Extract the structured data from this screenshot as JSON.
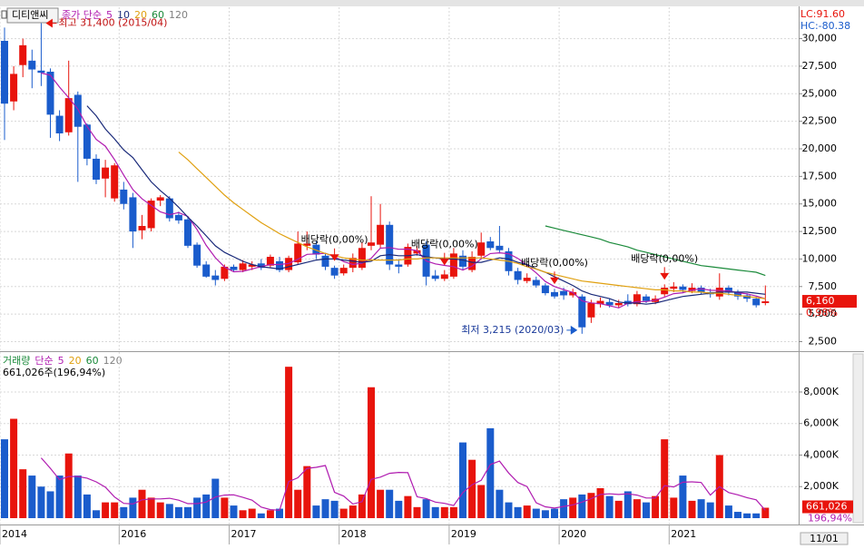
{
  "chart_data": {
    "type": "candlestick",
    "title": "디티앤씨",
    "price_legend": {
      "label": "종가 단순",
      "periods": [
        {
          "name": "5",
          "color": "#b01cb0"
        },
        {
          "name": "10",
          "color": "#1a2a7a"
        },
        {
          "name": "20",
          "color": "#e0a010"
        },
        {
          "name": "60",
          "color": "#1a8a3a"
        },
        {
          "name": "120",
          "color": "#808080"
        }
      ]
    },
    "lc_label": "LC:91.60",
    "hc_label": "HC:-80.38",
    "up_color": "#e8140c",
    "down_color": "#1a5ccc",
    "x_labels": [
      {
        "label": "2014",
        "at": 0
      },
      {
        "label": "2016",
        "at": 13
      },
      {
        "label": "2017",
        "at": 25
      },
      {
        "label": "2018",
        "at": 37
      },
      {
        "label": "2019",
        "at": 49
      },
      {
        "label": "2020",
        "at": 61
      },
      {
        "label": "2021",
        "at": 73
      }
    ],
    "last_date_label": "11/01",
    "ylim": [
      1800,
      32600
    ],
    "yticks": [
      {
        "value": 2500,
        "label": "2,500"
      },
      {
        "value": 5000,
        "label": "5,000"
      },
      {
        "value": 7500,
        "label": "7,500"
      },
      {
        "value": 10000,
        "label": "10,000"
      },
      {
        "value": 12500,
        "label": "12,500"
      },
      {
        "value": 15000,
        "label": "15,000"
      },
      {
        "value": 17500,
        "label": "17,500"
      },
      {
        "value": 20000,
        "label": "20,000"
      },
      {
        "value": 22500,
        "label": "22,500"
      },
      {
        "value": 25000,
        "label": "25,000"
      },
      {
        "value": 27500,
        "label": "27,500"
      },
      {
        "value": 30000,
        "label": "30,000"
      }
    ],
    "open": [
      29800,
      24300,
      27600,
      28000,
      27100,
      27000,
      23000,
      21500,
      24900,
      22200,
      19100,
      17300,
      15500,
      16300,
      15600,
      12600,
      12800,
      15300,
      15500,
      14000,
      13600,
      11300,
      9500,
      8500,
      8200,
      9300,
      9000,
      9300,
      9600,
      9400,
      9800,
      9000,
      9700,
      11200,
      11300,
      10300,
      9200,
      8700,
      9200,
      9200,
      11200,
      11300,
      13100,
      9500,
      9500,
      10500,
      11300,
      8500,
      8200,
      8400,
      10300,
      9000,
      10300,
      11600,
      11200,
      10700,
      8900,
      8000,
      8100,
      7600,
      7000,
      7100,
      6700,
      6600,
      4700,
      5900,
      6100,
      5800,
      6200,
      5900,
      6600,
      6100,
      6800,
      7300,
      7500,
      7100,
      7400,
      7000,
      6600,
      7400,
      7000,
      6700,
      6400,
      6000
    ],
    "high": [
      31000,
      27500,
      30000,
      29000,
      31400,
      27300,
      23500,
      28000,
      25200,
      22300,
      19500,
      19000,
      18700,
      17000,
      16000,
      14000,
      15500,
      15800,
      15700,
      14300,
      13800,
      11500,
      9800,
      9000,
      9500,
      9500,
      9900,
      9800,
      10000,
      10400,
      10200,
      10300,
      12500,
      12500,
      11600,
      10500,
      9400,
      9500,
      10500,
      11500,
      15700,
      15000,
      13400,
      10000,
      11400,
      11200,
      11600,
      9000,
      9000,
      11000,
      10800,
      10700,
      12400,
      12000,
      13000,
      11000,
      9200,
      8700,
      8400,
      7800,
      7300,
      7400,
      7300,
      6800,
      6300,
      6500,
      6400,
      6300,
      6800,
      7100,
      6800,
      6700,
      7700,
      7900,
      7700,
      7800,
      7600,
      7300,
      8700,
      7600,
      7200,
      6900,
      6600,
      7600
    ],
    "low": [
      20800,
      23500,
      26500,
      25500,
      25700,
      21000,
      20700,
      21200,
      17000,
      18500,
      16800,
      15600,
      15200,
      14500,
      11000,
      11800,
      12500,
      14800,
      13400,
      13200,
      11000,
      9200,
      8300,
      7600,
      8000,
      8800,
      8800,
      9000,
      9000,
      9200,
      8800,
      8800,
      9500,
      10800,
      10000,
      9000,
      8200,
      8500,
      8800,
      9000,
      10800,
      11000,
      9000,
      8700,
      9300,
      10300,
      7600,
      8000,
      8000,
      8200,
      9000,
      8800,
      10000,
      10800,
      10500,
      8500,
      7700,
      7800,
      7400,
      6700,
      6400,
      6300,
      6500,
      3215,
      4200,
      5600,
      5600,
      5600,
      5700,
      5700,
      6000,
      5900,
      6600,
      7000,
      6900,
      6900,
      6800,
      6500,
      6300,
      6700,
      6300,
      6100,
      5600,
      5800
    ],
    "close": [
      24100,
      26800,
      29400,
      27200,
      26900,
      23100,
      21400,
      24600,
      22000,
      19100,
      17200,
      18300,
      18500,
      15000,
      12500,
      13000,
      15300,
      15600,
      13700,
      13500,
      11200,
      9400,
      8400,
      8100,
      9300,
      9000,
      9600,
      9500,
      9200,
      10200,
      9000,
      10100,
      11400,
      11400,
      10400,
      9300,
      8500,
      9200,
      10100,
      11000,
      11500,
      13100,
      9500,
      9300,
      11100,
      10800,
      8400,
      8200,
      8600,
      10500,
      9300,
      10200,
      11500,
      11000,
      10800,
      8900,
      8100,
      8300,
      7600,
      6900,
      6600,
      6700,
      7000,
      3800,
      6000,
      6200,
      5800,
      6000,
      5900,
      6800,
      6200,
      6400,
      7400,
      7500,
      7200,
      7400,
      7000,
      6800,
      7400,
      7000,
      6600,
      6400,
      5800,
      6160
    ],
    "ma_series": [
      {
        "name": "5",
        "color": "#b01cb0",
        "values": [
          null,
          null,
          null,
          null,
          26880,
          26680,
          25600,
          24640,
          23600,
          22040,
          20860,
          20240,
          19020,
          17620,
          16300,
          15460,
          14860,
          14280,
          14020,
          14220,
          13860,
          12680,
          11240,
          10120,
          9280,
          8840,
          8880,
          9100,
          9320,
          9500,
          9500,
          9600,
          9980,
          10420,
          10460,
          10520,
          10200,
          9760,
          9500,
          9620,
          10060,
          10980,
          11040,
          10880,
          10900,
          10760,
          9820,
          9560,
          9420,
          9300,
          9000,
          9360,
          10020,
          10500,
          10560,
          10480,
          10060,
          9420,
          8740,
          7960,
          7500,
          7220,
          6960,
          6200,
          6020,
          5940,
          5760,
          5560,
          5980,
          6140,
          6140,
          6260,
          6540,
          6860,
          6940,
          7180,
          7300,
          7160,
          7140,
          7100,
          6940,
          6840,
          6640,
          6392
        ]
      },
      {
        "name": "10",
        "color": "#1a2a7a",
        "values": [
          null,
          null,
          null,
          null,
          null,
          null,
          null,
          null,
          null,
          23900,
          23000,
          21800,
          20900,
          19900,
          19200,
          18100,
          17000,
          16200,
          15500,
          14700,
          13800,
          13000,
          12100,
          11200,
          10600,
          10200,
          9800,
          9500,
          9300,
          9200,
          9100,
          9300,
          9500,
          9700,
          9900,
          10000,
          10000,
          9900,
          9800,
          9700,
          9800,
          10300,
          10400,
          10300,
          10300,
          10400,
          10200,
          10100,
          10000,
          10000,
          9900,
          9700,
          9700,
          9900,
          10100,
          10000,
          9700,
          9500,
          9100,
          8800,
          8400,
          8000,
          7600,
          7100,
          6800,
          6600,
          6400,
          6100,
          6000,
          6000,
          5900,
          6000,
          6200,
          6400,
          6600,
          6700,
          6800,
          6900,
          7000,
          7000,
          7000,
          7000,
          6900,
          6800
        ]
      },
      {
        "name": "20",
        "color": "#e0a010",
        "values": [
          null,
          null,
          null,
          null,
          null,
          null,
          null,
          null,
          null,
          null,
          null,
          null,
          null,
          null,
          null,
          null,
          null,
          null,
          null,
          19700,
          19000,
          18200,
          17400,
          16600,
          15800,
          15100,
          14500,
          13900,
          13300,
          12800,
          12300,
          11900,
          11500,
          11100,
          10800,
          10500,
          10300,
          10100,
          10000,
          9900,
          9900,
          9900,
          9900,
          9900,
          10000,
          10000,
          10100,
          10100,
          10100,
          10100,
          10100,
          10100,
          10100,
          10000,
          9900,
          9800,
          9600,
          9300,
          9100,
          8800,
          8600,
          8400,
          8200,
          8000,
          7900,
          7800,
          7700,
          7600,
          7500,
          7400,
          7300,
          7200,
          7200,
          7100,
          7100,
          7000,
          7000,
          6900,
          6900,
          6800,
          6700,
          6600,
          6500,
          6400
        ]
      },
      {
        "name": "60",
        "color": "#1a8a3a",
        "values": [
          null,
          null,
          null,
          null,
          null,
          null,
          null,
          null,
          null,
          null,
          null,
          null,
          null,
          null,
          null,
          null,
          null,
          null,
          null,
          null,
          null,
          null,
          null,
          null,
          null,
          null,
          null,
          null,
          null,
          null,
          null,
          null,
          null,
          null,
          null,
          null,
          null,
          null,
          null,
          null,
          null,
          null,
          null,
          null,
          null,
          null,
          null,
          null,
          null,
          null,
          null,
          null,
          null,
          null,
          null,
          null,
          null,
          null,
          null,
          13000,
          12800,
          12600,
          12400,
          12200,
          12000,
          11800,
          11500,
          11300,
          11100,
          10800,
          10600,
          10400,
          10200,
          10000,
          9800,
          9600,
          9400,
          9300,
          9200,
          9100,
          9000,
          8900,
          8800,
          8500
        ]
      }
    ],
    "high_label": {
      "text": "최고 31,400 (2015/04)",
      "at": 4
    },
    "low_label": {
      "text": "최저 3,215 (2020/03)",
      "at": 63
    },
    "dividends": [
      {
        "at": 36,
        "label": "배당락(0,00%)"
      },
      {
        "at": 48,
        "label": "배당락(0,00%)"
      },
      {
        "at": 60,
        "label": "배당락(0,00%)"
      },
      {
        "at": 72,
        "label": "배당락(0,00%)"
      }
    ],
    "current_price_label": "6,160",
    "change_label": "0,98%",
    "volume_panel": {
      "legend": {
        "label": "거래량",
        "method": "단순",
        "periods": [
          {
            "name": "5",
            "color": "#b01cb0"
          },
          {
            "name": "20",
            "color": "#e0a010"
          },
          {
            "name": "60",
            "color": "#1a8a3a"
          },
          {
            "name": "120",
            "color": "#808080"
          }
        ]
      },
      "info": "661,026주(196,94%)",
      "ylim": [
        0,
        10300
      ],
      "yticks": [
        {
          "value": 2000,
          "label": "2,000K"
        },
        {
          "value": 4000,
          "label": "4,000K"
        },
        {
          "value": 6000,
          "label": "6,000K"
        },
        {
          "value": 8000,
          "label": "8,000K"
        }
      ],
      "values": [
        5000,
        6300,
        3100,
        2700,
        2000,
        1700,
        2700,
        4100,
        2700,
        1500,
        500,
        1000,
        1000,
        700,
        1300,
        1800,
        1300,
        1000,
        900,
        700,
        700,
        1300,
        1500,
        2500,
        1300,
        800,
        500,
        600,
        300,
        500,
        600,
        9600,
        1800,
        3300,
        800,
        1200,
        1100,
        600,
        800,
        1500,
        8300,
        1800,
        1800,
        1100,
        1400,
        700,
        1200,
        700,
        700,
        700,
        4800,
        3700,
        2100,
        5700,
        1800,
        1000,
        700,
        800,
        600,
        500,
        600,
        1200,
        1300,
        1500,
        1600,
        1900,
        1400,
        1100,
        1700,
        1200,
        1000,
        1400,
        5000,
        1300,
        2700,
        1100,
        1200,
        1000,
        4000,
        800,
        400,
        300,
        300,
        661.026
      ],
      "ma5": {
        "name": "5",
        "color": "#b01cb0",
        "values": [
          null,
          null,
          null,
          null,
          3820,
          3160,
          2440,
          2640,
          2640,
          2540,
          2300,
          1960,
          1340,
          940,
          900,
          1160,
          1220,
          1220,
          1260,
          1140,
          920,
          920,
          1020,
          1340,
          1460,
          1480,
          1320,
          1140,
          700,
          540,
          500,
          2320,
          2560,
          3160,
          3220,
          3340,
          1640,
          1400,
          900,
          1040,
          2460,
          2600,
          2840,
          2900,
          2880,
          1360,
          1240,
          1020,
          940,
          800,
          1620,
          2120,
          2400,
          3400,
          3620,
          2860,
          2260,
          2000,
          980,
          720,
          640,
          740,
          840,
          1020,
          1240,
          1500,
          1540,
          1500,
          1540,
          1460,
          1280,
          1280,
          2060,
          1980,
          2280,
          2300,
          2260,
          1460,
          2000,
          1620,
          1480,
          1300,
          1160,
          492
        ]
      },
      "current_label": "661,026",
      "ratio_label": "196,94%"
    }
  }
}
